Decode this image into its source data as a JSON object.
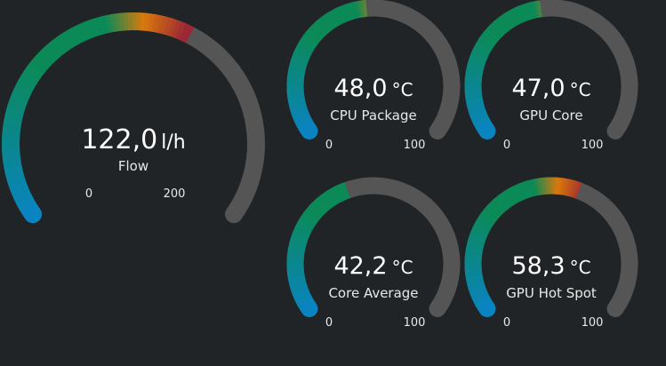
{
  "colors": {
    "background": "#202427",
    "track": "#555555",
    "gradient_low": "#0a84c0",
    "gradient_mid": "#0b8a57",
    "gradient_warm": "#d9790c",
    "gradient_hot": "#9b2734"
  },
  "gauges": {
    "flow": {
      "value": "122,0",
      "unit": "l/h",
      "label": "Flow",
      "min": "0",
      "max": "200",
      "level": 0.61
    },
    "cpu_package": {
      "value": "48,0",
      "unit": "°C",
      "label": "CPU Package",
      "min": "0",
      "max": "100",
      "level": 0.48
    },
    "gpu_core": {
      "value": "47,0",
      "unit": "°C",
      "label": "GPU Core",
      "min": "0",
      "max": "100",
      "level": 0.47
    },
    "core_average": {
      "value": "42,2",
      "unit": "°C",
      "label": "Core Average",
      "min": "0",
      "max": "100",
      "level": 0.422
    },
    "gpu_hot_spot": {
      "value": "58,3",
      "unit": "°C",
      "label": "GPU Hot Spot",
      "min": "0",
      "max": "100",
      "level": 0.583
    }
  }
}
